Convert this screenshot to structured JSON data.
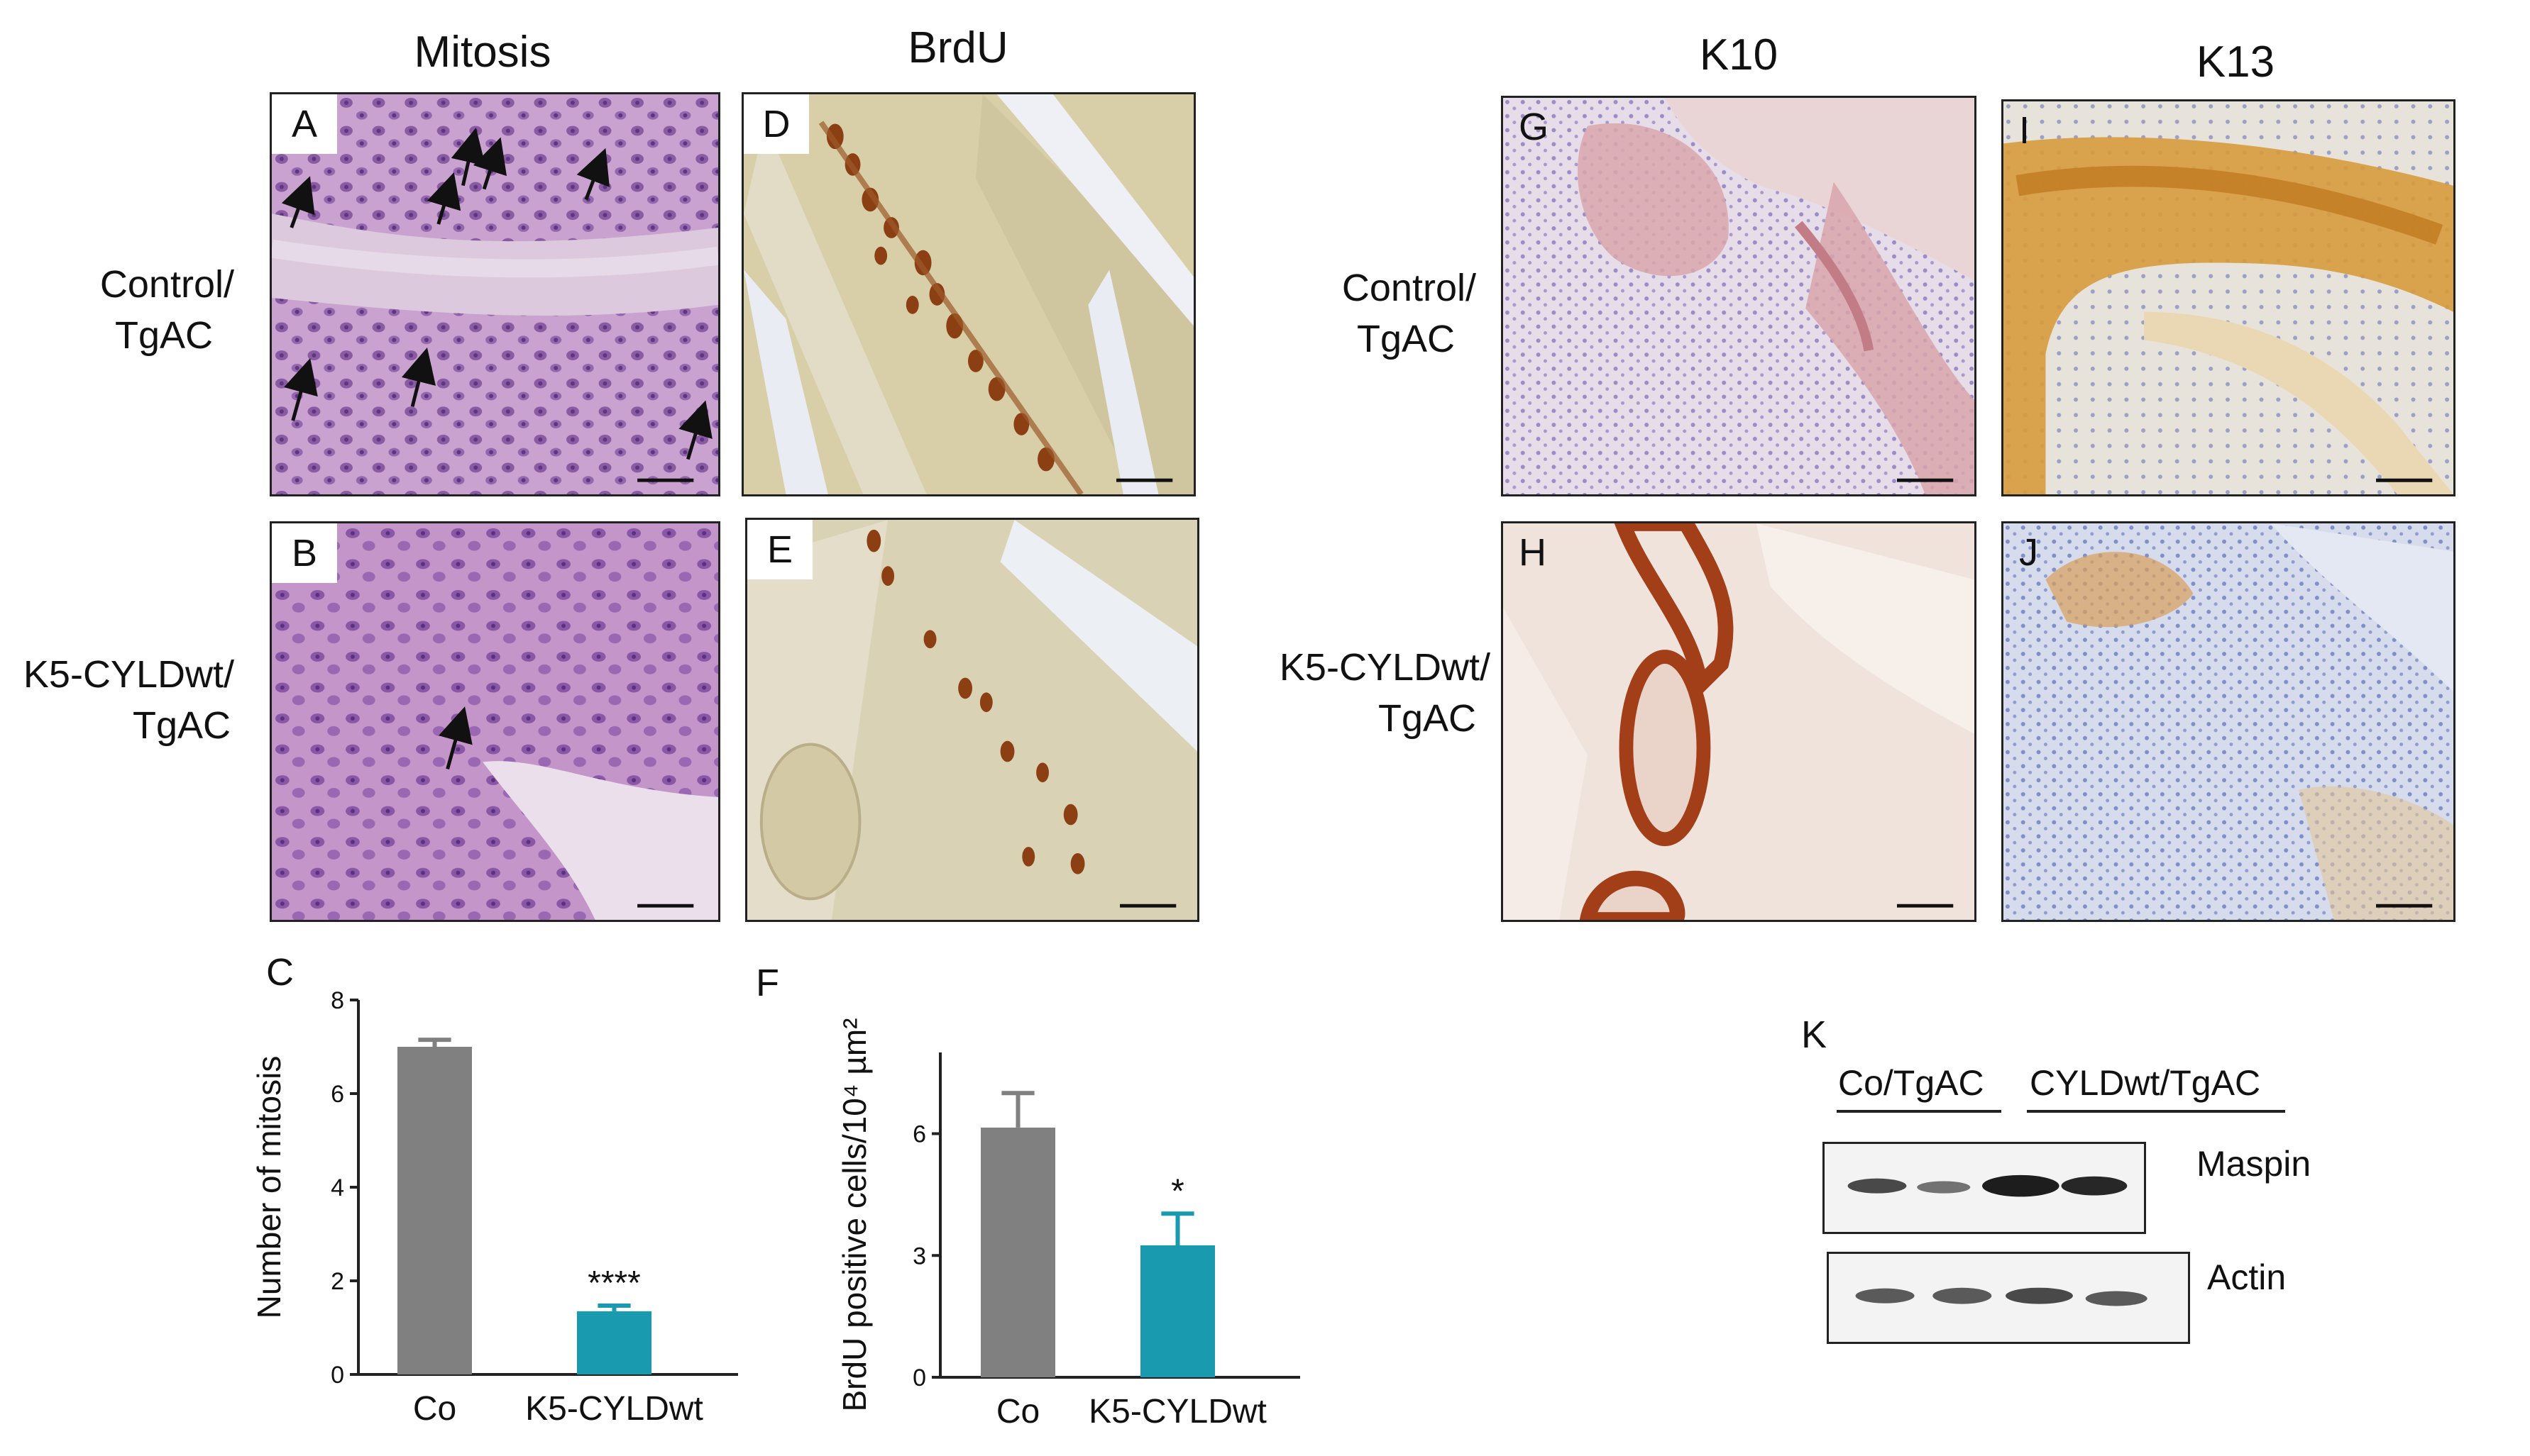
{
  "columns": {
    "mitosis": "Mitosis",
    "brdu": "BrdU",
    "k10": "K10",
    "k13": "K13"
  },
  "rows": {
    "control_line1": "Control/",
    "control_line2": "TgAC",
    "cyld_line1": "K5-CYLDwt/",
    "cyld_line2": "TgAC"
  },
  "panels": {
    "A": "A",
    "B": "B",
    "C": "C",
    "D": "D",
    "E": "E",
    "F": "F",
    "G": "G",
    "H": "H",
    "I": "I",
    "J": "J",
    "K": "K"
  },
  "chart_data": [
    {
      "type": "bar",
      "panel": "C",
      "categories": [
        "Co",
        "K5-CYLDwt"
      ],
      "values": [
        7.0,
        1.35
      ],
      "errors": [
        0.15,
        0.12
      ],
      "colors": [
        "#808080",
        "#1a9aae"
      ],
      "ylabel": "Number of mitosis",
      "ylim": [
        0,
        8
      ],
      "yticks": [
        "0",
        "2",
        "4",
        "6",
        "8"
      ],
      "significance": [
        "",
        "****"
      ]
    },
    {
      "type": "bar",
      "panel": "F",
      "categories": [
        "Co",
        "K5-CYLDwt"
      ],
      "values": [
        6.15,
        3.25
      ],
      "errors": [
        0.85,
        0.78
      ],
      "colors": [
        "#808080",
        "#1a9aae"
      ],
      "ylabel": "BrdU positive cells/10⁴ µm²",
      "ylim": [
        0,
        8
      ],
      "yticks": [
        "0",
        "3",
        "6"
      ],
      "significance": [
        "",
        "*"
      ]
    }
  ],
  "blot": {
    "group1": "Co/TgAC",
    "group2": "CYLDwt/TgAC",
    "band1": "Maspin",
    "band2": "Actin"
  }
}
